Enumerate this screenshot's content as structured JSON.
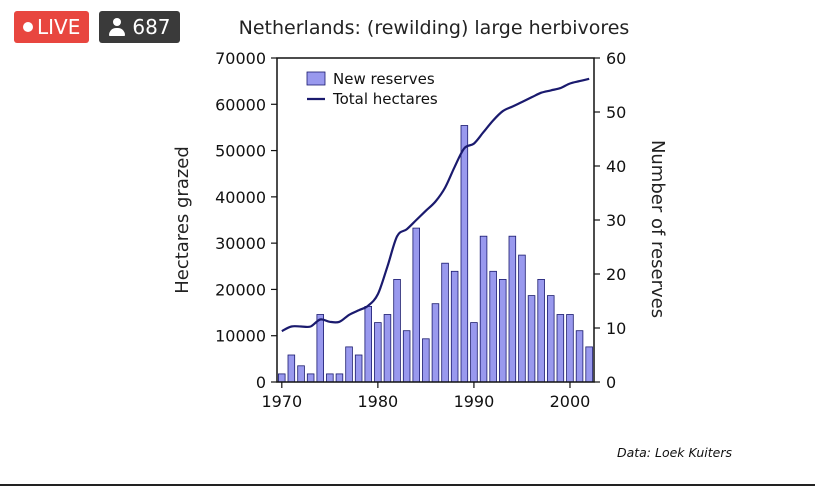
{
  "overlay": {
    "live_label": "LIVE",
    "viewer_count": "687",
    "live_color": "#e8463f",
    "viewer_bg": "#3a3a3a",
    "viewer_icon": "person-icon"
  },
  "chart_data": {
    "type": "bar+line",
    "title": "Netherlands: (rewilding) large herbivores",
    "ylabel_left": "Hectares grazed",
    "ylabel_right": "Number of reserves",
    "x_ticks": [
      1970,
      1980,
      1990,
      2000
    ],
    "xlim": [
      1969.5,
      2002.5
    ],
    "y_left_ticks": [
      0,
      10000,
      20000,
      30000,
      40000,
      50000,
      60000,
      70000
    ],
    "y_left_lim": [
      0,
      70000
    ],
    "y_right_ticks": [
      0,
      10,
      20,
      30,
      40,
      50,
      60
    ],
    "y_right_lim": [
      0,
      60
    ],
    "legend_position": "top-left",
    "grid": false,
    "bars": {
      "name": "New reserves",
      "axis": "right",
      "color": "#9999ee",
      "x": [
        1970,
        1971,
        1972,
        1973,
        1974,
        1975,
        1976,
        1977,
        1978,
        1979,
        1980,
        1981,
        1982,
        1983,
        1984,
        1985,
        1986,
        1987,
        1988,
        1989,
        1990,
        1991,
        1992,
        1993,
        1994,
        1995,
        1996,
        1997,
        1998,
        1999,
        2000,
        2001,
        2002
      ],
      "values": [
        1.5,
        5,
        3,
        1.5,
        12.5,
        1.5,
        1.5,
        6.5,
        5,
        14,
        11,
        12.5,
        19,
        9.5,
        28.5,
        8,
        14.5,
        22,
        20.5,
        47.5,
        11,
        27,
        20.5,
        19,
        27,
        23.5,
        16,
        19,
        16,
        12.5,
        12.5,
        9.5,
        6.5
      ]
    },
    "line": {
      "name": "Total hectares",
      "axis": "left",
      "color": "#1a1a6e",
      "x": [
        1970,
        1971,
        1972,
        1973,
        1974,
        1975,
        1976,
        1977,
        1978,
        1979,
        1980,
        1981,
        1982,
        1983,
        1984,
        1985,
        1986,
        1987,
        1988,
        1989,
        1990,
        1991,
        1992,
        1993,
        1994,
        1995,
        1996,
        1997,
        1998,
        1999,
        2000,
        2001,
        2002
      ],
      "values": [
        11000,
        12000,
        12000,
        12000,
        13500,
        13000,
        13000,
        14500,
        15500,
        16500,
        19000,
        25000,
        31500,
        33000,
        35000,
        37000,
        39000,
        42000,
        46500,
        50500,
        51500,
        54000,
        56500,
        58500,
        59500,
        60500,
        61500,
        62500,
        63000,
        63500,
        64500,
        65000,
        65500
      ]
    },
    "source": "Data: Loek Kuiters"
  }
}
